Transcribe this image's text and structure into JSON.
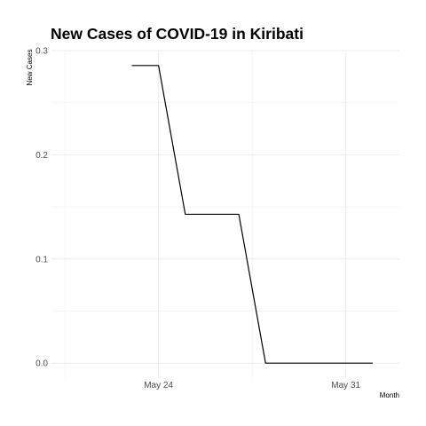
{
  "chart_data": {
    "type": "line",
    "title": "New Cases of COVID-19 in Kiribati",
    "xlabel": "Month",
    "ylabel": "New Cases",
    "x": [
      "2020-05-23",
      "2020-05-24",
      "2020-05-25",
      "2020-05-26",
      "2020-05-27",
      "2020-05-28",
      "2020-05-29",
      "2020-05-30",
      "2020-05-31",
      "2020-06-01"
    ],
    "values": [
      0.2857,
      0.2857,
      0.1429,
      0.1429,
      0.1429,
      0,
      0,
      0,
      0,
      0
    ],
    "x_ticks": [
      {
        "date": "2020-05-24",
        "label": "May 24"
      },
      {
        "date": "2020-05-31",
        "label": "May 31"
      }
    ],
    "y_ticks": [
      0,
      0.1,
      0.2,
      0.3
    ],
    "y_tick_labels": [
      "0.0",
      "0.1",
      "0.2",
      "0.3"
    ],
    "xlim": [
      "2020-05-20",
      "2020-06-02"
    ],
    "ylim": [
      -0.0143,
      0.3
    ],
    "grid": true,
    "line_color": "#000000",
    "grid_color": "#ebebeb"
  }
}
